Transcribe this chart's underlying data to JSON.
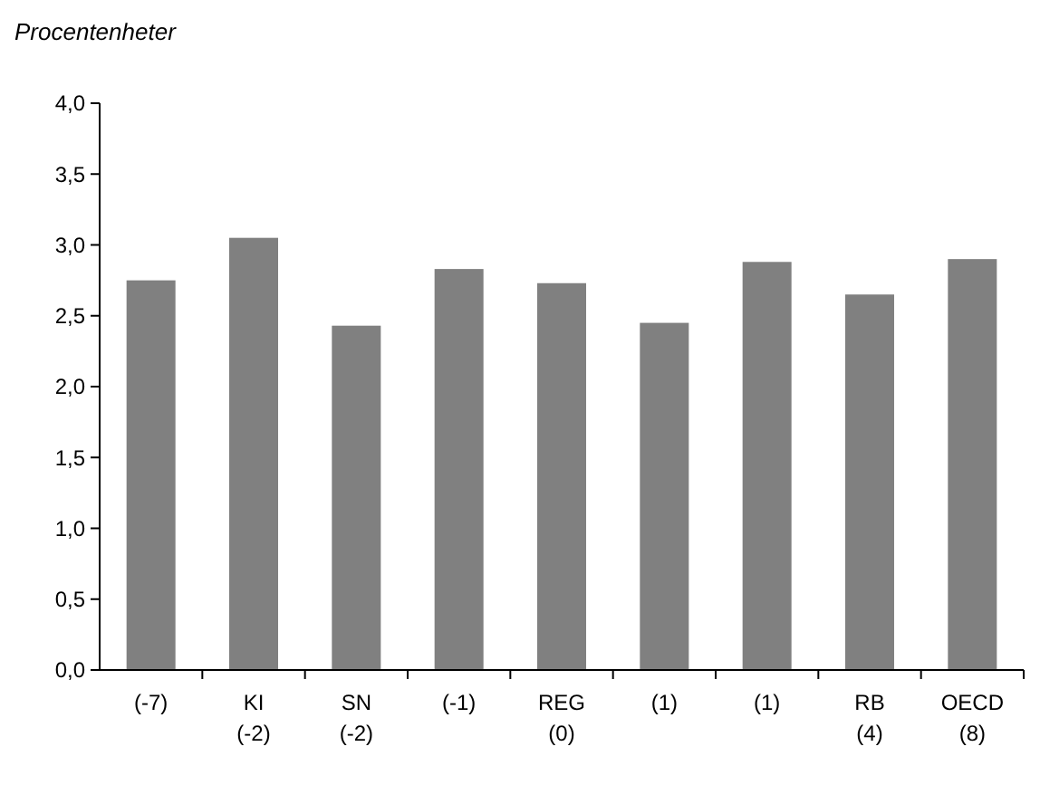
{
  "chart_data": {
    "type": "bar",
    "title": "Procentenheter",
    "categories": [
      "(-7)",
      "KI\n(-2)",
      "SN\n(-2)",
      "(-1)",
      "REG\n(0)",
      "(1)",
      "(1)",
      "RB\n(4)",
      "OECD\n(8)"
    ],
    "values": [
      2.75,
      3.05,
      2.43,
      2.83,
      2.73,
      2.45,
      2.88,
      2.65,
      2.9
    ],
    "color": "#808080",
    "ylim": [
      0,
      4
    ],
    "yticks": [
      {
        "value": 0,
        "label": "0,0"
      },
      {
        "value": 0.5,
        "label": "0,5"
      },
      {
        "value": 1,
        "label": "1,0"
      },
      {
        "value": 1.5,
        "label": "1,5"
      },
      {
        "value": 2,
        "label": "2,0"
      },
      {
        "value": 2.5,
        "label": "2,5"
      },
      {
        "value": 3,
        "label": "3,0"
      },
      {
        "value": 3.5,
        "label": "3,5"
      },
      {
        "value": 4,
        "label": "4,0"
      }
    ],
    "grid": false
  }
}
